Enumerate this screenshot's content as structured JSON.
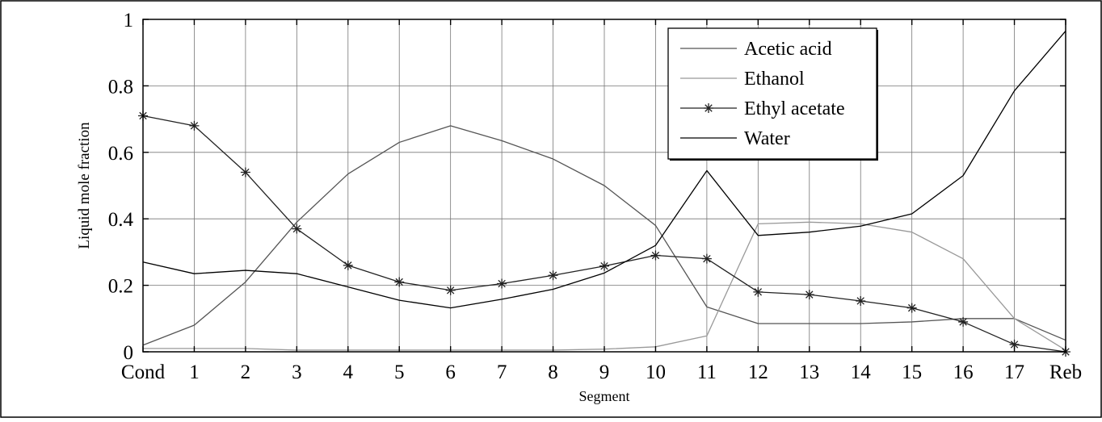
{
  "chart_data": {
    "type": "line",
    "xlabel": "Segment",
    "ylabel": "Liquid mole fraction",
    "categories": [
      "Cond",
      "1",
      "2",
      "3",
      "4",
      "5",
      "6",
      "7",
      "8",
      "9",
      "10",
      "11",
      "12",
      "13",
      "14",
      "15",
      "16",
      "17",
      "Reb"
    ],
    "ylim": [
      0,
      1
    ],
    "yticks": [
      "0",
      "0.2",
      "0.4",
      "0.6",
      "0.8",
      "1"
    ],
    "grid": true,
    "legend_position": "top-right",
    "series": [
      {
        "name": "Acetic acid",
        "color": "#555555",
        "marker": "none",
        "values": [
          0.02,
          0.08,
          0.21,
          0.39,
          0.535,
          0.63,
          0.68,
          0.635,
          0.58,
          0.5,
          0.38,
          0.135,
          0.085,
          0.085,
          0.085,
          0.09,
          0.1,
          0.1,
          0.035
        ]
      },
      {
        "name": "Ethanol",
        "color": "#999999",
        "marker": "none",
        "values": [
          0.01,
          0.01,
          0.01,
          0.005,
          0.005,
          0.005,
          0.005,
          0.005,
          0.005,
          0.008,
          0.015,
          0.048,
          0.385,
          0.39,
          0.385,
          0.36,
          0.28,
          0.1,
          0.005
        ]
      },
      {
        "name": "Ethyl acetate",
        "color": "#222222",
        "marker": "star",
        "values": [
          0.71,
          0.68,
          0.54,
          0.37,
          0.26,
          0.21,
          0.185,
          0.205,
          0.23,
          0.258,
          0.29,
          0.28,
          0.18,
          0.172,
          0.153,
          0.132,
          0.09,
          0.022,
          0.0
        ]
      },
      {
        "name": "Water",
        "color": "#000000",
        "marker": "none",
        "values": [
          0.27,
          0.235,
          0.245,
          0.235,
          0.195,
          0.155,
          0.132,
          0.158,
          0.188,
          0.237,
          0.32,
          0.545,
          0.35,
          0.36,
          0.378,
          0.415,
          0.53,
          0.785,
          0.965
        ]
      }
    ]
  }
}
